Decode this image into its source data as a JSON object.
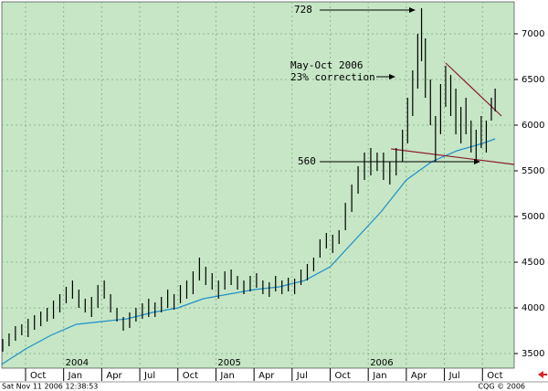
{
  "chart_data": {
    "type": "ohlc",
    "annotations": [
      "728",
      "May-Oct 2006",
      "23% correction",
      "560"
    ],
    "bar_color": "#000000",
    "xlim": [
      -1.87,
      38.5
    ],
    "ylim": [
      3340,
      7350
    ],
    "xticks": [
      {
        "value": 0,
        "label": "Oct"
      },
      {
        "value": 3,
        "label": "Jan"
      },
      {
        "value": 6,
        "label": "Apr"
      },
      {
        "value": 9,
        "label": "Jul"
      },
      {
        "value": 12,
        "label": "Oct"
      },
      {
        "value": 15,
        "label": "Jan"
      },
      {
        "value": 18,
        "label": "Apr"
      },
      {
        "value": 21,
        "label": "Jul"
      },
      {
        "value": 24,
        "label": "Oct"
      },
      {
        "value": 27,
        "label": "Jan"
      },
      {
        "value": 30,
        "label": "Apr"
      },
      {
        "value": 33,
        "label": "Jul"
      },
      {
        "value": 36,
        "label": "Oct"
      }
    ],
    "year_labels": [
      {
        "value": 3,
        "label": "2004"
      },
      {
        "value": 15,
        "label": "2005"
      },
      {
        "value": 27,
        "label": "2006"
      }
    ],
    "yticks": [
      3500,
      4000,
      4500,
      5000,
      5500,
      6000,
      6500,
      7000
    ],
    "grid": true,
    "x": [
      -1.8,
      -1.3,
      -0.8,
      -0.3,
      0.2,
      0.7,
      1.2,
      1.7,
      2.2,
      2.7,
      3.2,
      3.7,
      4.2,
      4.7,
      5.2,
      5.7,
      6.2,
      6.7,
      7.2,
      7.7,
      8.2,
      8.7,
      9.2,
      9.7,
      10.2,
      10.7,
      11.2,
      11.7,
      12.2,
      12.7,
      13.2,
      13.7,
      14.2,
      14.7,
      15.2,
      15.7,
      16.2,
      16.7,
      17.2,
      17.7,
      18.2,
      18.7,
      19.2,
      19.7,
      20.2,
      20.7,
      21.2,
      21.7,
      22.2,
      22.7,
      23.2,
      23.7,
      24.2,
      24.7,
      25.2,
      25.7,
      26.2,
      26.7,
      27.2,
      27.7,
      28.2,
      28.7,
      29.2,
      29.7,
      30.1,
      30.5,
      30.9,
      31.2,
      31.5,
      31.9,
      32.3,
      32.7,
      33.1,
      33.5,
      33.9,
      34.3,
      34.7,
      35.1,
      35.5,
      35.9,
      36.3,
      36.7,
      37.0
    ],
    "low": [
      3520,
      3580,
      3640,
      3700,
      3680,
      3760,
      3800,
      3850,
      3880,
      3950,
      4050,
      4100,
      4000,
      3950,
      3900,
      4000,
      4100,
      3950,
      3850,
      3750,
      3780,
      3850,
      3880,
      3900,
      3900,
      3950,
      4000,
      3980,
      4050,
      4100,
      4150,
      4300,
      4250,
      4200,
      4100,
      4200,
      4250,
      4200,
      4150,
      4180,
      4220,
      4150,
      4120,
      4180,
      4150,
      4180,
      4150,
      4250,
      4300,
      4400,
      4550,
      4650,
      4600,
      4700,
      4850,
      5050,
      5250,
      5400,
      5450,
      5500,
      5400,
      5350,
      5450,
      5600,
      5800,
      6100,
      6400,
      6700,
      6300,
      6000,
      5600,
      5900,
      6200,
      6100,
      5900,
      5800,
      5900,
      5700,
      5600,
      5750,
      5700,
      6050,
      6150
    ],
    "high": [
      3660,
      3720,
      3800,
      3820,
      3880,
      3920,
      3960,
      4000,
      4080,
      4150,
      4230,
      4300,
      4200,
      4100,
      4120,
      4250,
      4300,
      4150,
      4000,
      3900,
      3950,
      4000,
      4050,
      4100,
      4060,
      4120,
      4200,
      4150,
      4250,
      4300,
      4400,
      4550,
      4450,
      4380,
      4300,
      4400,
      4420,
      4350,
      4300,
      4350,
      4380,
      4300,
      4280,
      4350,
      4300,
      4330,
      4320,
      4420,
      4480,
      4550,
      4750,
      4820,
      4800,
      4850,
      5150,
      5350,
      5550,
      5700,
      5750,
      5700,
      5700,
      5600,
      5750,
      5950,
      6300,
      6600,
      7000,
      7280,
      6950,
      6500,
      6100,
      6450,
      6650,
      6550,
      6400,
      6200,
      6300,
      6050,
      5950,
      6100,
      6050,
      6300,
      6400
    ],
    "moving_average": {
      "color": "#1e90c8",
      "x": [
        -1.9,
        0,
        2,
        4,
        6,
        8,
        10,
        12,
        14,
        16,
        18,
        20,
        22,
        24,
        26,
        28,
        30,
        32,
        34,
        36,
        37
      ],
      "values": [
        3380,
        3550,
        3700,
        3820,
        3850,
        3880,
        3950,
        4000,
        4100,
        4150,
        4200,
        4230,
        4300,
        4450,
        4750,
        5050,
        5400,
        5600,
        5720,
        5800,
        5850
      ]
    },
    "trendlines": [
      {
        "color": "#8b1a2a",
        "x": [
          33.1,
          37.5
        ],
        "values": [
          6680,
          6100
        ]
      },
      {
        "color": "#8b1a2a",
        "x": [
          28.8,
          38.5
        ],
        "values": [
          5740,
          5570
        ]
      }
    ]
  },
  "status_bar": {
    "left": "Sat Nov 11 2006 12:38:53",
    "right": "CQG © 2006"
  }
}
